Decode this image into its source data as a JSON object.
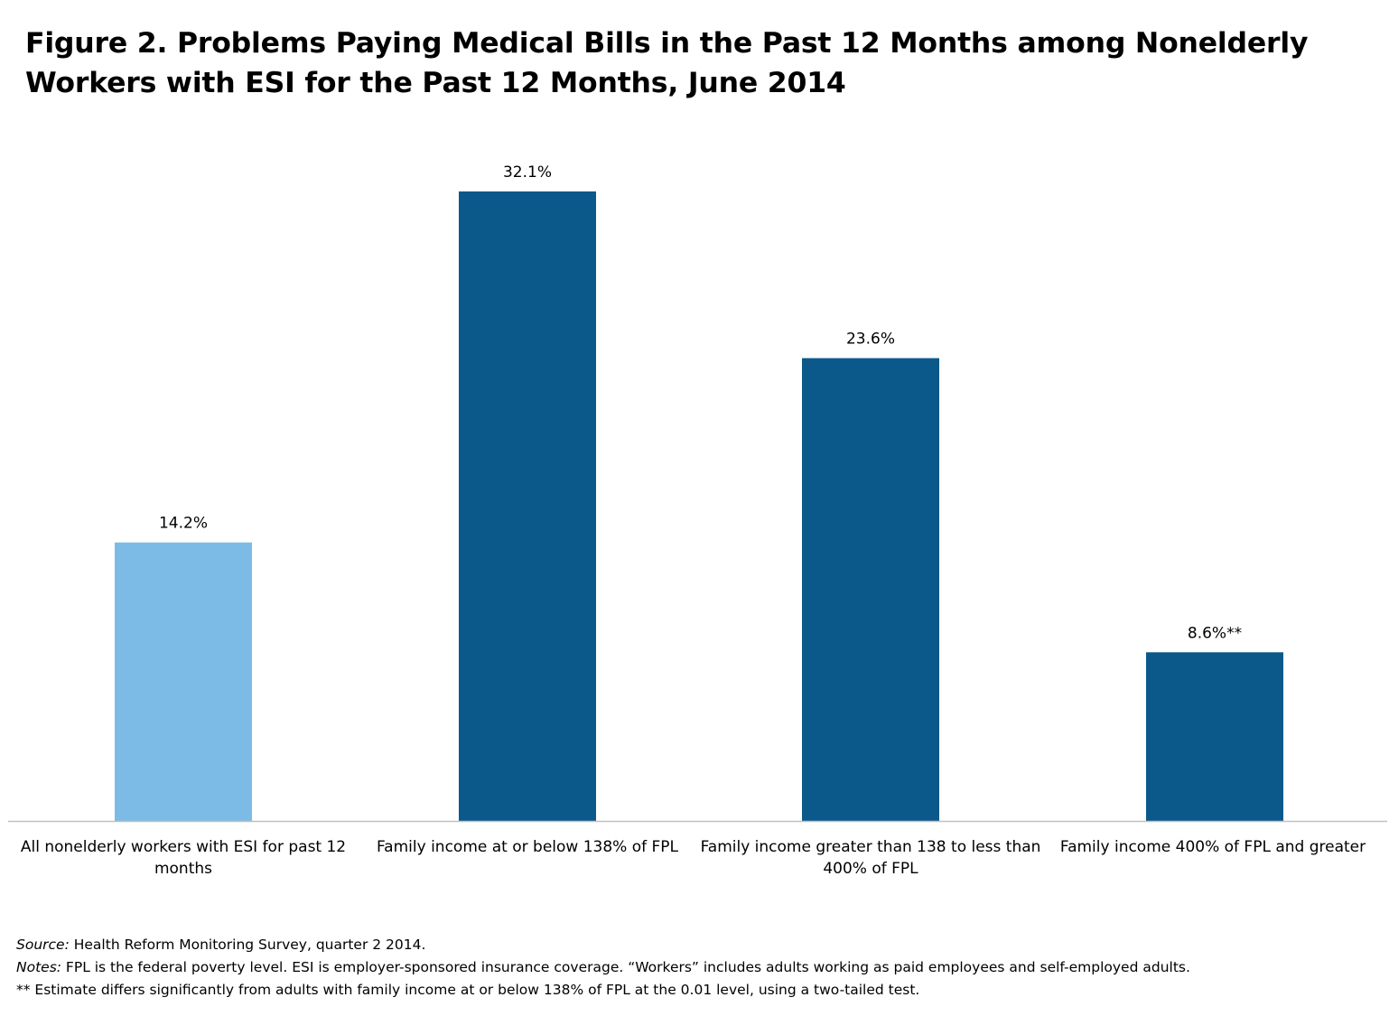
{
  "title": "Figure 2. Problems Paying Medical Bills in the Past 12 Months among Nonelderly Workers with ESI for the Past 12 Months, June 2014",
  "colors": {
    "highlight": "#7bbbe5",
    "primary": "#0b598a",
    "axis": "#bfbfbf"
  },
  "chart_data": {
    "type": "bar",
    "title": "Figure 2. Problems Paying Medical Bills in the Past 12 Months among Nonelderly Workers with ESI for the Past 12 Months, June 2014",
    "categories": [
      "All nonelderly workers with ESI for past 12 months",
      "Family income at or below 138% of FPL",
      "Family income greater than 138 to less than 400% of FPL",
      "Family income 400% of FPL and greater"
    ],
    "values": [
      14.2,
      32.1,
      23.6,
      8.6
    ],
    "value_labels": [
      "14.2%",
      "32.1%",
      "23.6%",
      "8.6%**"
    ],
    "bar_colors": [
      "#7bbbe5",
      "#0b598a",
      "#0b598a",
      "#0b598a"
    ],
    "xlabel": "",
    "ylabel": "",
    "ylim": [
      0,
      32.1
    ],
    "grid": false,
    "legend": "none"
  },
  "notes": {
    "source_label": "Source:",
    "source_text": " Health Reform Monitoring Survey, quarter 2 2014.",
    "notes_label": "Notes:",
    "notes_text": " FPL is the federal poverty level.  ESI is employer-sponsored insurance coverage. “Workers” includes adults working as paid employees and self-employed adults.",
    "significance_text": "** Estimate differs significantly from adults with family income at or below 138% of FPL at the 0.01 level, using a two-tailed test."
  }
}
